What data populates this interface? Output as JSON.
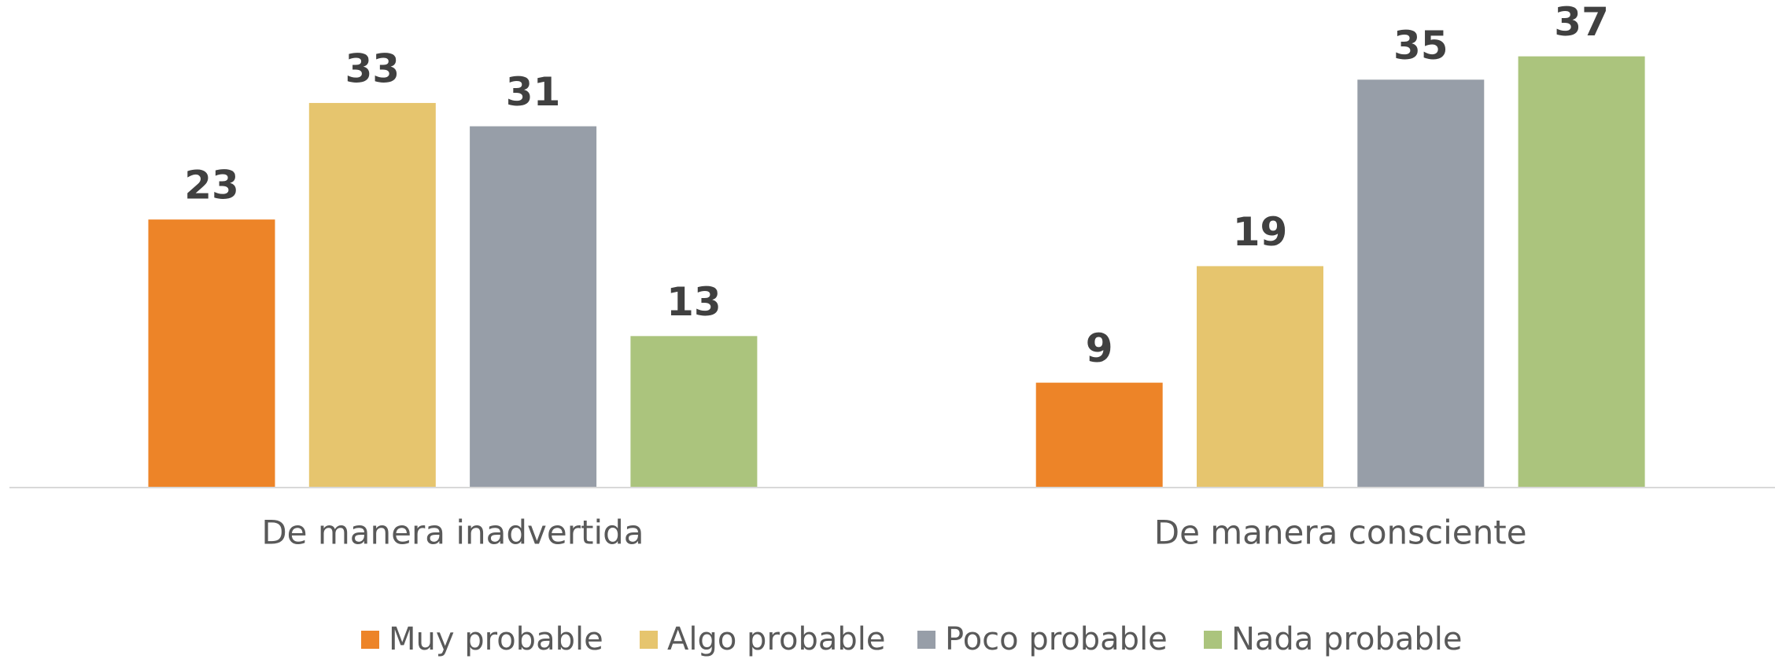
{
  "chart_data": {
    "type": "bar",
    "categories": [
      "De manera inadvertida",
      "De manera consciente"
    ],
    "series": [
      {
        "name": "Muy probable",
        "color": "#ed8428",
        "values": [
          23,
          9
        ]
      },
      {
        "name": "Algo probable",
        "color": "#e6c56e",
        "values": [
          33,
          19
        ]
      },
      {
        "name": "Poco probable",
        "color": "#979ea8",
        "values": [
          31,
          35
        ]
      },
      {
        "name": "Nada probable",
        "color": "#abc47d",
        "values": [
          13,
          37
        ]
      }
    ],
    "legend": "bottom"
  }
}
